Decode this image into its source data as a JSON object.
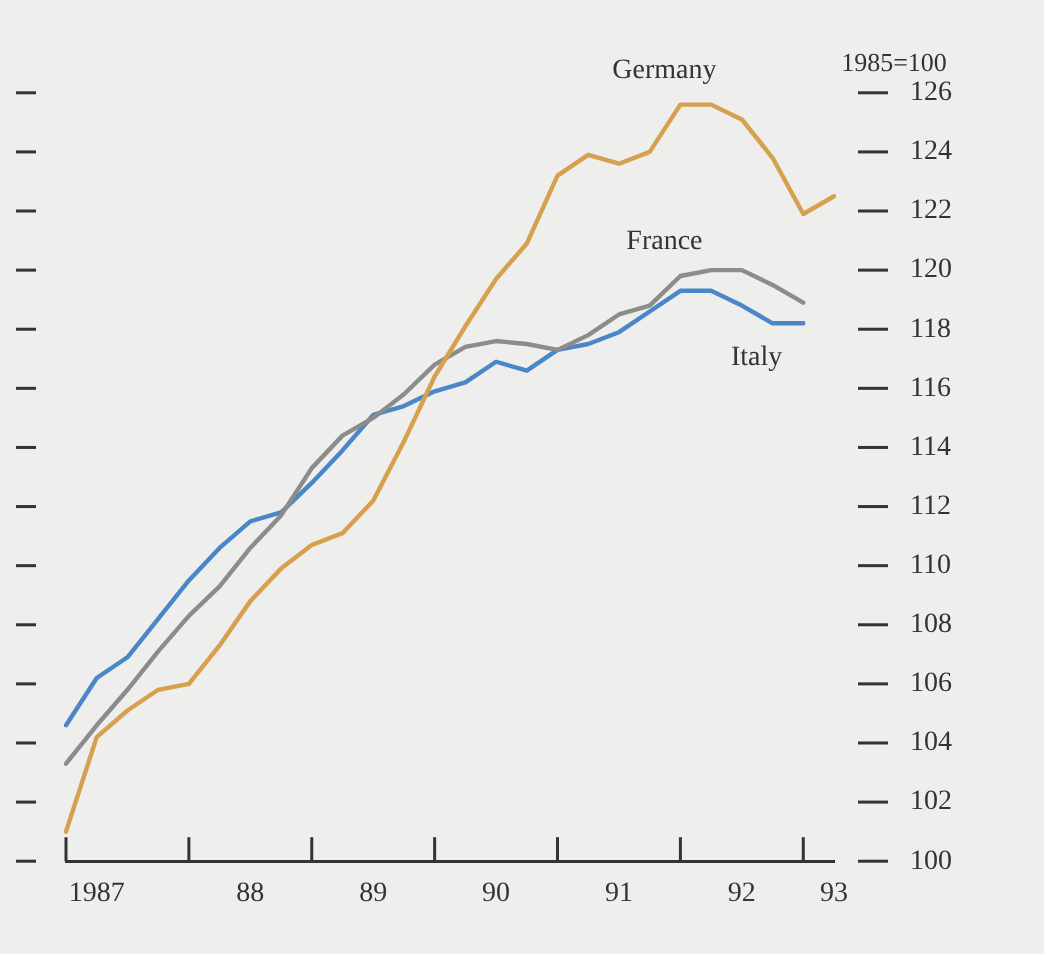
{
  "chart_data": {
    "type": "line",
    "ylabel": "1985=100",
    "categories": [
      null,
      "1987",
      null,
      null,
      null,
      null,
      "88",
      null,
      null,
      null,
      "89",
      null,
      null,
      null,
      "90",
      null,
      null,
      null,
      "91",
      null,
      null,
      null,
      "92",
      null,
      null,
      "93"
    ],
    "series": [
      {
        "name": "Germany",
        "color": "#d6a04e",
        "values": [
          101.0,
          104.2,
          105.1,
          105.8,
          106.0,
          107.3,
          108.8,
          109.9,
          110.7,
          111.1,
          112.2,
          114.2,
          116.4,
          118.1,
          119.7,
          120.9,
          123.2,
          123.9,
          123.6,
          124.0,
          125.6,
          125.6,
          125.1,
          123.8,
          121.9,
          122.5
        ]
      },
      {
        "name": "France",
        "color": "#8c8c8c",
        "values": [
          103.3,
          104.6,
          105.8,
          107.1,
          108.3,
          109.3,
          110.6,
          111.7,
          113.3,
          114.4,
          115.0,
          115.8,
          116.8,
          117.4,
          117.6,
          117.5,
          117.3,
          117.8,
          118.5,
          118.8,
          119.8,
          120.0,
          120.0,
          119.5,
          118.9,
          null
        ]
      },
      {
        "name": "Italy",
        "color": "#4a86c8",
        "values": [
          104.6,
          106.2,
          106.9,
          108.2,
          109.5,
          110.6,
          111.5,
          111.8,
          112.8,
          113.9,
          115.1,
          115.4,
          115.9,
          116.2,
          116.9,
          116.6,
          117.3,
          117.5,
          117.9,
          118.6,
          119.3,
          119.3,
          118.8,
          118.2,
          118.2,
          null
        ]
      }
    ],
    "ylim": [
      100,
      126
    ],
    "yticks": [
      100,
      102,
      104,
      106,
      108,
      110,
      112,
      114,
      116,
      118,
      120,
      122,
      124,
      126
    ],
    "grid": false,
    "legend": false,
    "marker": "none",
    "line_style": "solid"
  }
}
